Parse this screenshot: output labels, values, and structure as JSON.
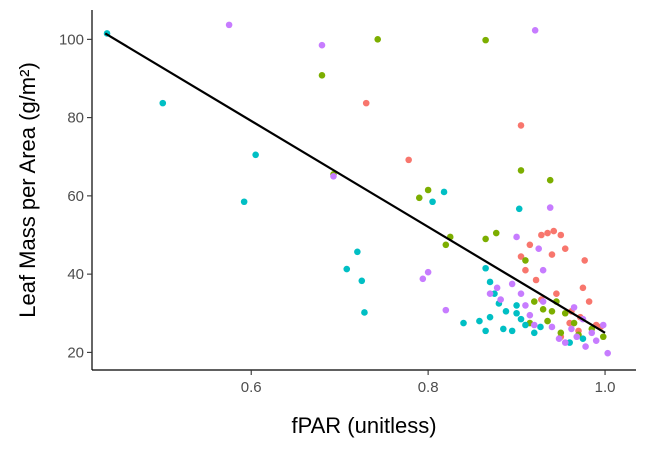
{
  "chart_data": {
    "type": "scatter",
    "title": "",
    "xlabel": "fPAR (unitless)",
    "ylabel": "Leaf Mass per Area (g/m²)",
    "xlim": [
      0.42,
      1.035
    ],
    "ylim": [
      15.5,
      107.5
    ],
    "x_ticks": [
      0.6,
      0.8,
      1.0
    ],
    "x_tick_labels": [
      "0.6",
      "0.8",
      "1.0"
    ],
    "y_ticks": [
      20,
      40,
      60,
      80,
      100
    ],
    "y_tick_labels": [
      "20",
      "40",
      "60",
      "80",
      "100"
    ],
    "grid": false,
    "legend": "none",
    "trend_line": {
      "x": [
        0.435,
        1.0
      ],
      "y": [
        101.5,
        25.0
      ],
      "color": "#000000"
    },
    "series": [
      {
        "color": "#F8766D",
        "points": [
          [
            0.73,
            83.7
          ],
          [
            0.778,
            69.2
          ],
          [
            0.905,
            78.0
          ],
          [
            0.905,
            44.5
          ],
          [
            0.91,
            41.0
          ],
          [
            0.915,
            47.5
          ],
          [
            0.928,
            50.0
          ],
          [
            0.935,
            50.5
          ],
          [
            0.942,
            51.0
          ],
          [
            0.95,
            50.0
          ],
          [
            0.955,
            46.5
          ],
          [
            0.94,
            45.0
          ],
          [
            0.922,
            38.5
          ],
          [
            0.928,
            33.5
          ],
          [
            0.945,
            35.0
          ],
          [
            0.962,
            30.5
          ],
          [
            0.972,
            29.0
          ],
          [
            0.975,
            36.5
          ],
          [
            0.977,
            43.5
          ],
          [
            0.982,
            33.0
          ],
          [
            0.99,
            27.0
          ],
          [
            0.995,
            26.5
          ],
          [
            0.96,
            27.5
          ],
          [
            0.95,
            24.0
          ],
          [
            0.97,
            25.5
          ]
        ]
      },
      {
        "color": "#7CAE00",
        "points": [
          [
            0.68,
            90.8
          ],
          [
            0.743,
            100.0
          ],
          [
            0.865,
            99.8
          ],
          [
            0.693,
            65.5
          ],
          [
            0.79,
            59.5
          ],
          [
            0.8,
            61.5
          ],
          [
            0.82,
            47.5
          ],
          [
            0.825,
            49.5
          ],
          [
            0.865,
            49.0
          ],
          [
            0.877,
            50.5
          ],
          [
            0.905,
            66.5
          ],
          [
            0.91,
            43.5
          ],
          [
            0.938,
            64.0
          ],
          [
            0.92,
            33.0
          ],
          [
            0.915,
            27.5
          ],
          [
            0.93,
            31.0
          ],
          [
            0.935,
            28.0
          ],
          [
            0.945,
            33.0
          ],
          [
            0.955,
            30.0
          ],
          [
            0.965,
            27.5
          ],
          [
            0.97,
            24.5
          ],
          [
            0.985,
            26.0
          ],
          [
            0.998,
            24.0
          ],
          [
            0.95,
            25.0
          ],
          [
            0.94,
            30.5
          ]
        ]
      },
      {
        "color": "#00BFC4",
        "points": [
          [
            0.437,
            101.5
          ],
          [
            0.5,
            83.7
          ],
          [
            0.605,
            70.5
          ],
          [
            0.592,
            58.5
          ],
          [
            0.818,
            61.0
          ],
          [
            0.805,
            58.5
          ],
          [
            0.903,
            56.7
          ],
          [
            0.72,
            45.7
          ],
          [
            0.708,
            41.3
          ],
          [
            0.725,
            38.3
          ],
          [
            0.728,
            30.2
          ],
          [
            0.84,
            27.5
          ],
          [
            0.858,
            28.0
          ],
          [
            0.865,
            25.5
          ],
          [
            0.87,
            29.0
          ],
          [
            0.865,
            41.5
          ],
          [
            0.87,
            38.0
          ],
          [
            0.875,
            35.0
          ],
          [
            0.88,
            32.5
          ],
          [
            0.888,
            30.5
          ],
          [
            0.9,
            30.0
          ],
          [
            0.905,
            28.5
          ],
          [
            0.885,
            26.0
          ],
          [
            0.895,
            25.5
          ],
          [
            0.91,
            27.0
          ],
          [
            0.92,
            25.0
          ],
          [
            0.927,
            26.5
          ],
          [
            0.96,
            22.5
          ],
          [
            0.975,
            23.5
          ],
          [
            0.9,
            32.0
          ]
        ]
      },
      {
        "color": "#C77CFF",
        "points": [
          [
            0.575,
            103.7
          ],
          [
            0.68,
            98.5
          ],
          [
            0.921,
            102.3
          ],
          [
            0.693,
            65.0
          ],
          [
            0.8,
            40.5
          ],
          [
            0.794,
            38.8
          ],
          [
            0.82,
            30.8
          ],
          [
            0.87,
            35.0
          ],
          [
            0.878,
            36.5
          ],
          [
            0.882,
            33.5
          ],
          [
            0.895,
            37.5
          ],
          [
            0.905,
            35.0
          ],
          [
            0.9,
            49.5
          ],
          [
            0.925,
            46.5
          ],
          [
            0.93,
            41.0
          ],
          [
            0.938,
            57.0
          ],
          [
            0.91,
            32.0
          ],
          [
            0.915,
            29.5
          ],
          [
            0.92,
            27.0
          ],
          [
            0.94,
            26.5
          ],
          [
            0.948,
            23.5
          ],
          [
            0.955,
            22.5
          ],
          [
            0.962,
            26.0
          ],
          [
            0.968,
            24.0
          ],
          [
            0.975,
            28.5
          ],
          [
            0.978,
            21.5
          ],
          [
            0.985,
            25.0
          ],
          [
            0.99,
            23.0
          ],
          [
            0.998,
            27.0
          ],
          [
            1.003,
            19.8
          ],
          [
            0.93,
            33.0
          ],
          [
            0.965,
            31.5
          ]
        ]
      }
    ]
  }
}
